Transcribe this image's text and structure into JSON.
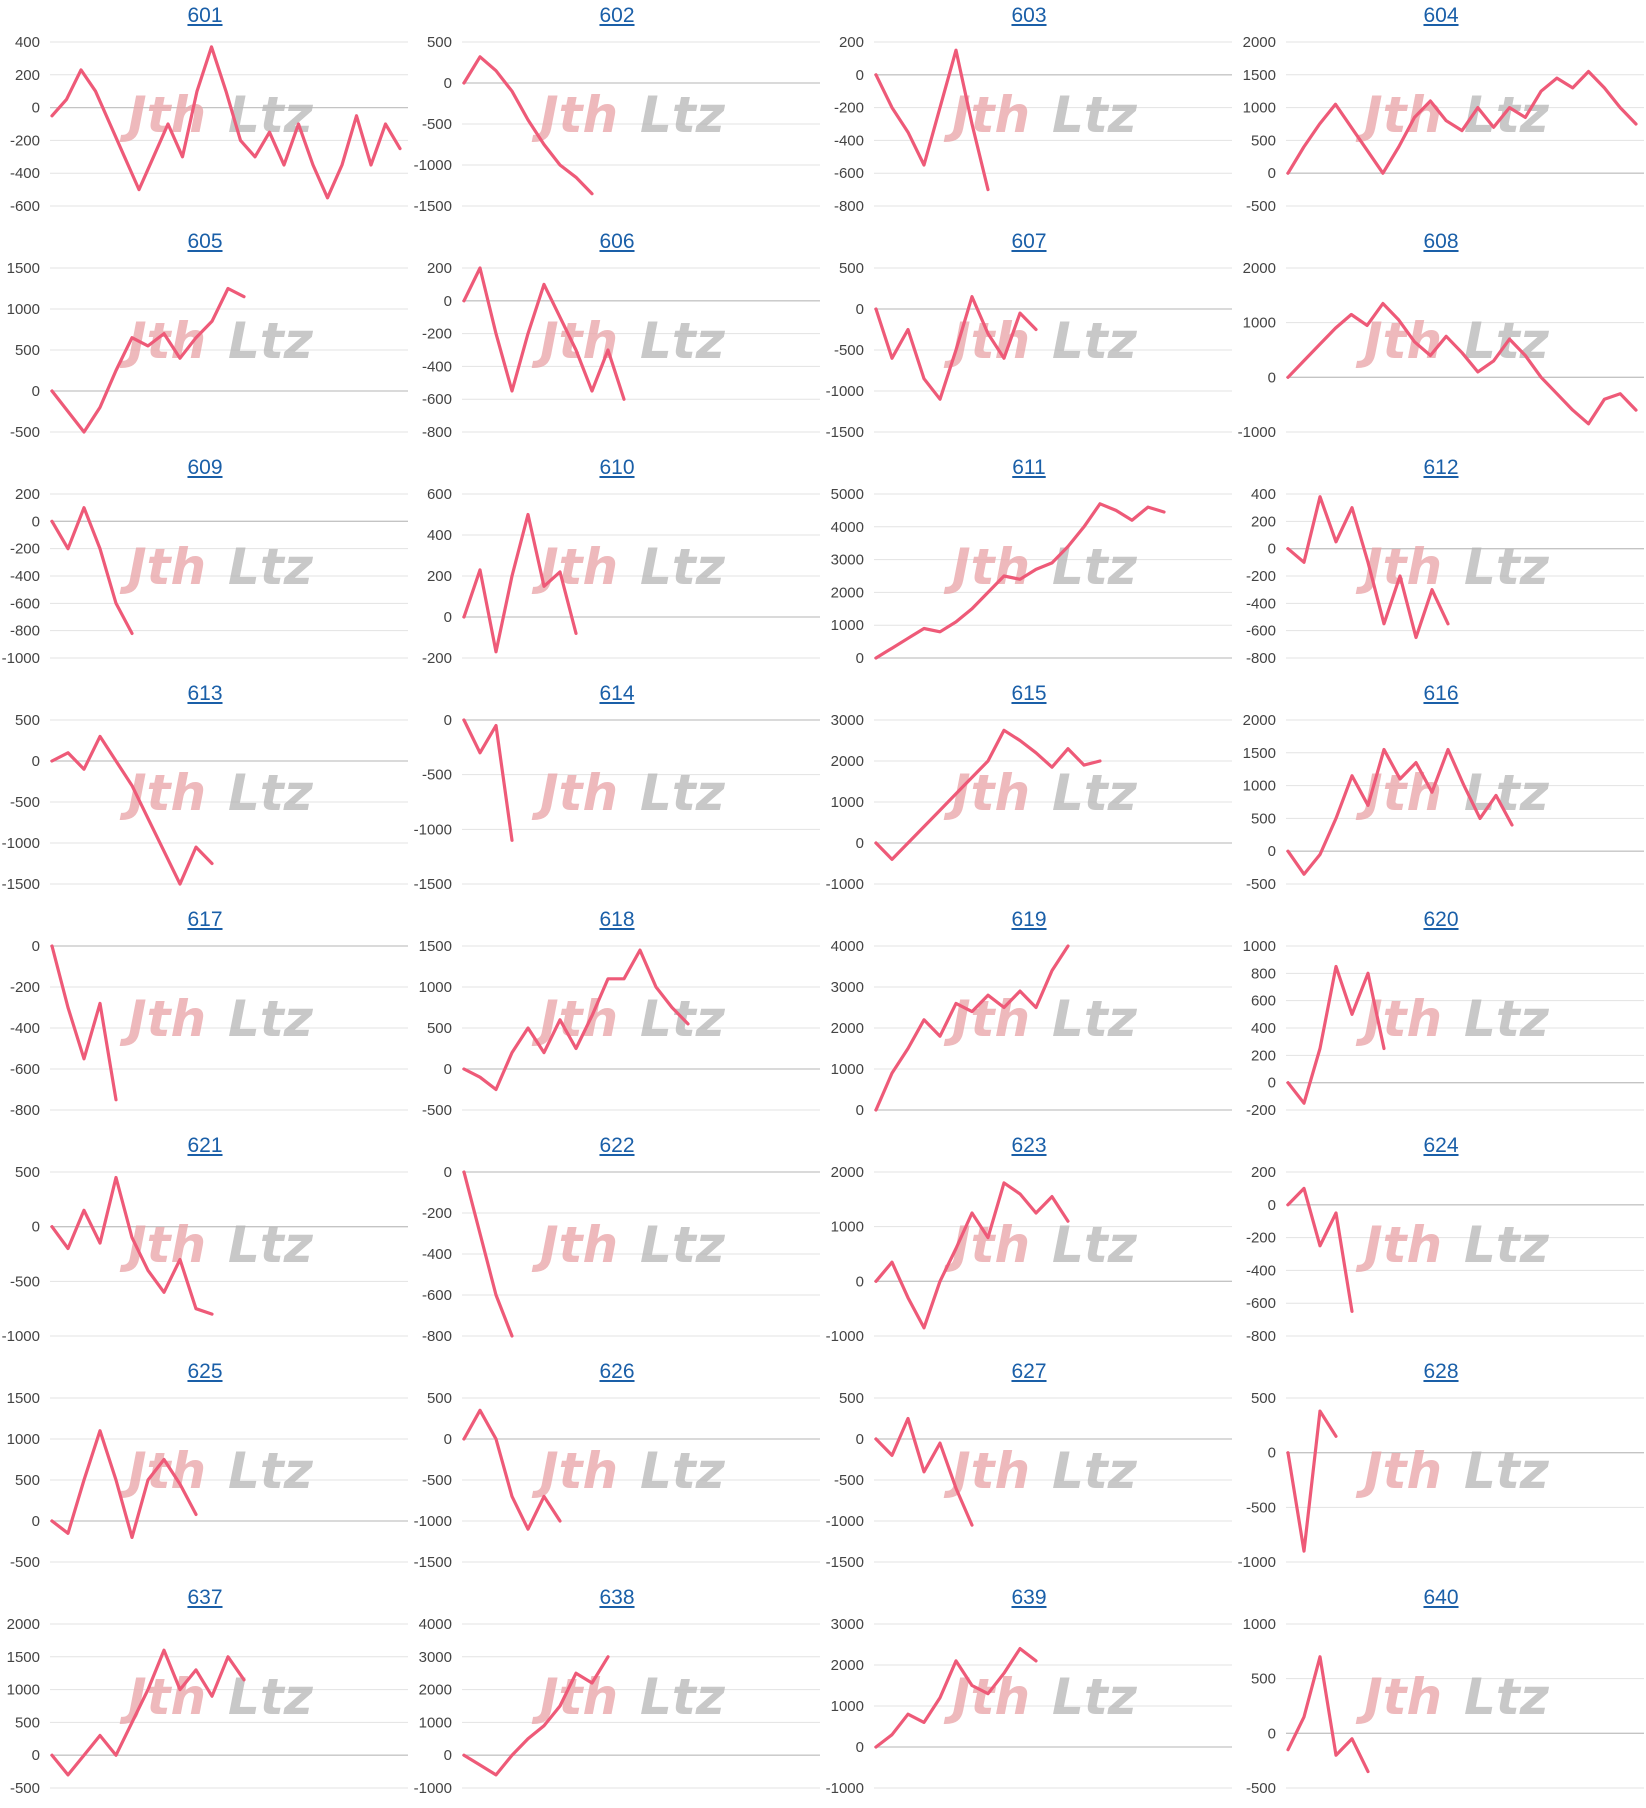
{
  "colors": {
    "line": "#ee5a78",
    "link": "#1a5fa8",
    "watermark_red": "#e8a2a6",
    "watermark_gray": "#b5b5b5"
  },
  "watermark": {
    "part1": "Jth",
    "part2": "Ltz"
  },
  "chart_data": [
    {
      "type": "line",
      "title": "601",
      "ylim": [
        -600,
        400
      ],
      "yticks": [
        400,
        200,
        0,
        -200,
        -400,
        -600
      ],
      "values": [
        -50,
        50,
        230,
        100,
        -100,
        -300,
        -500,
        -300,
        -100,
        -300,
        100,
        370,
        100,
        -200,
        -300,
        -150,
        -350,
        -100,
        -350,
        -550,
        -350,
        -50,
        -350,
        -100,
        -250
      ]
    },
    {
      "type": "line",
      "title": "602",
      "ylim": [
        -1500,
        500
      ],
      "yticks": [
        500,
        0,
        -500,
        -1000,
        -1500
      ],
      "values": [
        0,
        320,
        150,
        -100,
        -450,
        -750,
        -1000,
        -1150,
        -1350
      ]
    },
    {
      "type": "line",
      "title": "603",
      "ylim": [
        -800,
        200
      ],
      "yticks": [
        200,
        0,
        -200,
        -400,
        -600,
        -800
      ],
      "values": [
        0,
        -200,
        -350,
        -550,
        -200,
        150,
        -300,
        -700
      ]
    },
    {
      "type": "line",
      "title": "604",
      "ylim": [
        -500,
        2000
      ],
      "yticks": [
        2000,
        1500,
        1000,
        500,
        0,
        -500
      ],
      "values": [
        0,
        400,
        750,
        1050,
        700,
        350,
        0,
        400,
        850,
        1100,
        800,
        650,
        1000,
        700,
        1000,
        850,
        1250,
        1450,
        1300,
        1550,
        1300,
        1000,
        750
      ]
    },
    {
      "type": "line",
      "title": "605",
      "ylim": [
        -500,
        1500
      ],
      "yticks": [
        1500,
        1000,
        500,
        0,
        -500
      ],
      "values": [
        0,
        -250,
        -500,
        -200,
        250,
        650,
        550,
        700,
        400,
        650,
        850,
        1250,
        1150
      ]
    },
    {
      "type": "line",
      "title": "606",
      "ylim": [
        -800,
        200
      ],
      "yticks": [
        200,
        0,
        -200,
        -400,
        -600,
        -800
      ],
      "values": [
        0,
        200,
        -200,
        -550,
        -200,
        100,
        -100,
        -300,
        -550,
        -300,
        -600
      ]
    },
    {
      "type": "line",
      "title": "607",
      "ylim": [
        -1500,
        500
      ],
      "yticks": [
        500,
        0,
        -500,
        -1000,
        -1500
      ],
      "values": [
        0,
        -600,
        -250,
        -850,
        -1100,
        -500,
        150,
        -300,
        -600,
        -50,
        -250
      ]
    },
    {
      "type": "line",
      "title": "608",
      "ylim": [
        -1000,
        2000
      ],
      "yticks": [
        2000,
        1000,
        0,
        -1000
      ],
      "values": [
        0,
        300,
        600,
        900,
        1150,
        950,
        1350,
        1050,
        650,
        400,
        750,
        450,
        100,
        300,
        700,
        400,
        0,
        -300,
        -600,
        -850,
        -400,
        -300,
        -600
      ]
    },
    {
      "type": "line",
      "title": "609",
      "ylim": [
        -1000,
        200
      ],
      "yticks": [
        200,
        0,
        -200,
        -400,
        -600,
        -800,
        -1000
      ],
      "values": [
        0,
        -200,
        100,
        -200,
        -600,
        -820
      ]
    },
    {
      "type": "line",
      "title": "610",
      "ylim": [
        -200,
        600
      ],
      "yticks": [
        600,
        400,
        200,
        0,
        -200
      ],
      "values": [
        0,
        230,
        -170,
        200,
        500,
        150,
        220,
        -80
      ]
    },
    {
      "type": "line",
      "title": "611",
      "ylim": [
        0,
        5000
      ],
      "yticks": [
        5000,
        4000,
        3000,
        2000,
        1000,
        0
      ],
      "values": [
        0,
        300,
        600,
        900,
        800,
        1100,
        1500,
        2000,
        2500,
        2400,
        2700,
        2900,
        3400,
        4000,
        4700,
        4500,
        4200,
        4600,
        4450
      ]
    },
    {
      "type": "line",
      "title": "612",
      "ylim": [
        -800,
        400
      ],
      "yticks": [
        400,
        200,
        0,
        -200,
        -400,
        -600,
        -800
      ],
      "values": [
        0,
        -100,
        380,
        50,
        300,
        -100,
        -550,
        -200,
        -650,
        -300,
        -550
      ]
    },
    {
      "type": "line",
      "title": "613",
      "ylim": [
        -1500,
        500
      ],
      "yticks": [
        500,
        0,
        -500,
        -1000,
        -1500
      ],
      "values": [
        0,
        100,
        -100,
        300,
        0,
        -300,
        -700,
        -1100,
        -1500,
        -1050,
        -1250
      ]
    },
    {
      "type": "line",
      "title": "614",
      "ylim": [
        -1500,
        0
      ],
      "yticks": [
        0,
        -500,
        -1000,
        -1500
      ],
      "values": [
        0,
        -300,
        -50,
        -1100
      ]
    },
    {
      "type": "line",
      "title": "615",
      "ylim": [
        -1000,
        3000
      ],
      "yticks": [
        3000,
        2000,
        1000,
        0,
        -1000
      ],
      "values": [
        0,
        -400,
        0,
        400,
        800,
        1200,
        1600,
        2000,
        2750,
        2500,
        2200,
        1850,
        2300,
        1900,
        2000
      ]
    },
    {
      "type": "line",
      "title": "616",
      "ylim": [
        -500,
        2000
      ],
      "yticks": [
        2000,
        1500,
        1000,
        500,
        0,
        -500
      ],
      "values": [
        0,
        -350,
        -50,
        500,
        1150,
        700,
        1550,
        1100,
        1350,
        900,
        1550,
        1000,
        500,
        850,
        400
      ]
    },
    {
      "type": "line",
      "title": "617",
      "ylim": [
        -800,
        0
      ],
      "yticks": [
        0,
        -200,
        -400,
        -600,
        -800
      ],
      "values": [
        0,
        -300,
        -550,
        -280,
        -750
      ]
    },
    {
      "type": "line",
      "title": "618",
      "ylim": [
        -500,
        1500
      ],
      "yticks": [
        1500,
        1000,
        500,
        0,
        -500
      ],
      "values": [
        0,
        -100,
        -250,
        200,
        500,
        200,
        600,
        250,
        650,
        1100,
        1100,
        1450,
        1000,
        750,
        550
      ]
    },
    {
      "type": "line",
      "title": "619",
      "ylim": [
        0,
        4000
      ],
      "yticks": [
        4000,
        3000,
        2000,
        1000,
        0
      ],
      "values": [
        0,
        900,
        1500,
        2200,
        1800,
        2600,
        2400,
        2800,
        2500,
        2900,
        2500,
        3400,
        4000
      ]
    },
    {
      "type": "line",
      "title": "620",
      "ylim": [
        -200,
        1000
      ],
      "yticks": [
        1000,
        800,
        600,
        400,
        200,
        0,
        -200
      ],
      "values": [
        0,
        -150,
        250,
        850,
        500,
        800,
        250
      ]
    },
    {
      "type": "line",
      "title": "621",
      "ylim": [
        -1000,
        500
      ],
      "yticks": [
        500,
        0,
        -500,
        -1000
      ],
      "values": [
        0,
        -200,
        150,
        -150,
        450,
        -100,
        -400,
        -600,
        -300,
        -750,
        -800
      ]
    },
    {
      "type": "line",
      "title": "622",
      "ylim": [
        -800,
        0
      ],
      "yticks": [
        0,
        -200,
        -400,
        -600,
        -800
      ],
      "values": [
        0,
        -300,
        -600,
        -800
      ]
    },
    {
      "type": "line",
      "title": "623",
      "ylim": [
        -1000,
        2000
      ],
      "yticks": [
        2000,
        1000,
        0,
        -1000
      ],
      "values": [
        0,
        350,
        -300,
        -850,
        0,
        600,
        1250,
        800,
        1800,
        1600,
        1250,
        1550,
        1100
      ]
    },
    {
      "type": "line",
      "title": "624",
      "ylim": [
        -800,
        200
      ],
      "yticks": [
        200,
        0,
        -200,
        -400,
        -600,
        -800
      ],
      "values": [
        0,
        100,
        -250,
        -50,
        -650
      ]
    },
    {
      "type": "line",
      "title": "625",
      "ylim": [
        -500,
        1500
      ],
      "yticks": [
        1500,
        1000,
        500,
        0,
        -500
      ],
      "values": [
        0,
        -150,
        500,
        1100,
        500,
        -200,
        500,
        750,
        450,
        80
      ]
    },
    {
      "type": "line",
      "title": "626",
      "ylim": [
        -1500,
        500
      ],
      "yticks": [
        500,
        0,
        -500,
        -1000,
        -1500
      ],
      "values": [
        0,
        350,
        0,
        -700,
        -1100,
        -700,
        -1000
      ]
    },
    {
      "type": "line",
      "title": "627",
      "ylim": [
        -1500,
        500
      ],
      "yticks": [
        500,
        0,
        -500,
        -1000,
        -1500
      ],
      "values": [
        0,
        -200,
        250,
        -400,
        -50,
        -600,
        -1050
      ]
    },
    {
      "type": "line",
      "title": "628",
      "ylim": [
        -1000,
        500
      ],
      "yticks": [
        500,
        0,
        -500,
        -1000
      ],
      "values": [
        0,
        -900,
        380,
        150
      ]
    },
    {
      "type": "line",
      "title": "637",
      "ylim": [
        -500,
        2000
      ],
      "yticks": [
        2000,
        1500,
        1000,
        500,
        0,
        -500
      ],
      "values": [
        0,
        -300,
        0,
        300,
        0,
        500,
        1000,
        1600,
        1000,
        1300,
        900,
        1500,
        1150
      ]
    },
    {
      "type": "line",
      "title": "638",
      "ylim": [
        -1000,
        4000
      ],
      "yticks": [
        4000,
        3000,
        2000,
        1000,
        0,
        -1000
      ],
      "values": [
        0,
        -300,
        -600,
        0,
        500,
        900,
        1500,
        2500,
        2200,
        3000
      ]
    },
    {
      "type": "line",
      "title": "639",
      "ylim": [
        -1000,
        3000
      ],
      "yticks": [
        3000,
        2000,
        1000,
        0,
        -1000
      ],
      "values": [
        0,
        300,
        800,
        600,
        1200,
        2100,
        1500,
        1300,
        1800,
        2400,
        2100
      ]
    },
    {
      "type": "line",
      "title": "640",
      "ylim": [
        -500,
        1000
      ],
      "yticks": [
        1000,
        500,
        0,
        -500
      ],
      "values": [
        -150,
        150,
        700,
        -200,
        -50,
        -350
      ]
    }
  ]
}
